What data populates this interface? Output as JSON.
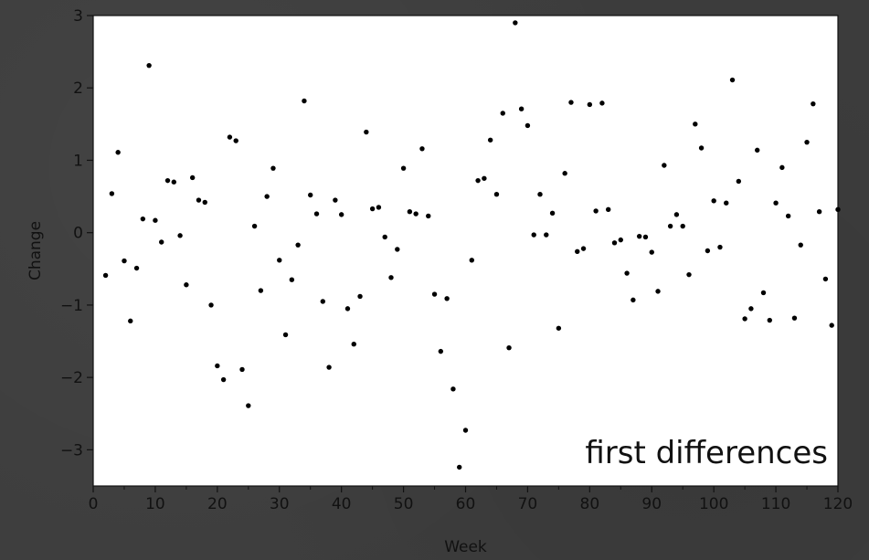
{
  "chart_data": {
    "type": "scatter",
    "xlabel": "Week",
    "ylabel": "Change",
    "xlim": [
      0,
      120
    ],
    "ylim": [
      -3.5,
      3
    ],
    "x_ticks": [
      0,
      10,
      20,
      30,
      40,
      50,
      60,
      70,
      80,
      90,
      100,
      110,
      120
    ],
    "x_tick_labels": [
      "0",
      "10",
      "20",
      "30",
      "40",
      "50",
      "60",
      "70",
      "80",
      "90",
      "100",
      "110",
      "120"
    ],
    "y_ticks": [
      -3,
      -2,
      -1,
      0,
      1,
      2,
      3
    ],
    "y_tick_labels": [
      "−3",
      "−2",
      "−1",
      "0",
      "1",
      "2",
      "3"
    ],
    "grid": false,
    "point_color": "#000000",
    "annotation": "first differences",
    "points": [
      [
        2,
        -0.59
      ],
      [
        3,
        0.54
      ],
      [
        4,
        1.11
      ],
      [
        5,
        -0.39
      ],
      [
        6,
        -1.22
      ],
      [
        7,
        -0.49
      ],
      [
        8,
        0.19
      ],
      [
        9,
        2.31
      ],
      [
        10,
        0.17
      ],
      [
        11,
        -0.13
      ],
      [
        12,
        0.72
      ],
      [
        13,
        0.7
      ],
      [
        14,
        -0.04
      ],
      [
        15,
        -0.72
      ],
      [
        16,
        0.76
      ],
      [
        17,
        0.45
      ],
      [
        18,
        0.42
      ],
      [
        19,
        -1.0
      ],
      [
        20,
        -1.84
      ],
      [
        21,
        -2.03
      ],
      [
        22,
        1.32
      ],
      [
        23,
        1.27
      ],
      [
        24,
        -1.89
      ],
      [
        25,
        -2.39
      ],
      [
        26,
        0.09
      ],
      [
        27,
        -0.8
      ],
      [
        28,
        0.5
      ],
      [
        29,
        0.89
      ],
      [
        30,
        -0.38
      ],
      [
        31,
        -1.41
      ],
      [
        32,
        -0.65
      ],
      [
        33,
        -0.17
      ],
      [
        34,
        1.82
      ],
      [
        35,
        0.52
      ],
      [
        36,
        0.26
      ],
      [
        37,
        -0.95
      ],
      [
        38,
        -1.86
      ],
      [
        39,
        0.45
      ],
      [
        40,
        0.25
      ],
      [
        41,
        -1.05
      ],
      [
        42,
        -1.54
      ],
      [
        43,
        -0.88
      ],
      [
        44,
        1.39
      ],
      [
        45,
        0.33
      ],
      [
        46,
        0.35
      ],
      [
        47,
        -0.06
      ],
      [
        48,
        -0.62
      ],
      [
        49,
        -0.23
      ],
      [
        50,
        0.89
      ],
      [
        51,
        0.29
      ],
      [
        52,
        0.26
      ],
      [
        53,
        1.16
      ],
      [
        54,
        0.23
      ],
      [
        55,
        -0.85
      ],
      [
        56,
        -1.64
      ],
      [
        57,
        -0.91
      ],
      [
        58,
        -2.16
      ],
      [
        59,
        -3.24
      ],
      [
        60,
        -2.73
      ],
      [
        61,
        -0.38
      ],
      [
        62,
        0.72
      ],
      [
        63,
        0.75
      ],
      [
        64,
        1.28
      ],
      [
        65,
        0.53
      ],
      [
        66,
        1.65
      ],
      [
        67,
        -1.59
      ],
      [
        68,
        2.9
      ],
      [
        69,
        1.71
      ],
      [
        70,
        1.48
      ],
      [
        71,
        -0.03
      ],
      [
        72,
        0.53
      ],
      [
        73,
        -0.03
      ],
      [
        74,
        0.27
      ],
      [
        75,
        -1.32
      ],
      [
        76,
        0.82
      ],
      [
        77,
        1.8
      ],
      [
        78,
        -0.26
      ],
      [
        79,
        -0.22
      ],
      [
        80,
        1.77
      ],
      [
        81,
        0.3
      ],
      [
        82,
        1.79
      ],
      [
        83,
        0.32
      ],
      [
        84,
        -0.14
      ],
      [
        85,
        -0.1
      ],
      [
        86,
        -0.56
      ],
      [
        87,
        -0.93
      ],
      [
        88,
        -0.05
      ],
      [
        89,
        -0.06
      ],
      [
        90,
        -0.27
      ],
      [
        91,
        -0.81
      ],
      [
        92,
        0.93
      ],
      [
        93,
        0.09
      ],
      [
        94,
        0.25
      ],
      [
        95,
        0.09
      ],
      [
        96,
        -0.58
      ],
      [
        97,
        1.5
      ],
      [
        98,
        1.17
      ],
      [
        99,
        -0.25
      ],
      [
        100,
        0.44
      ],
      [
        101,
        -0.2
      ],
      [
        102,
        0.41
      ],
      [
        103,
        2.11
      ],
      [
        104,
        0.71
      ],
      [
        105,
        -1.19
      ],
      [
        106,
        -1.05
      ],
      [
        107,
        1.14
      ],
      [
        108,
        -0.83
      ],
      [
        109,
        -1.21
      ],
      [
        110,
        0.41
      ],
      [
        111,
        0.9
      ],
      [
        112,
        0.23
      ],
      [
        113,
        -1.18
      ],
      [
        114,
        -0.17
      ],
      [
        115,
        1.25
      ],
      [
        116,
        1.78
      ],
      [
        117,
        0.29
      ],
      [
        118,
        -0.64
      ],
      [
        119,
        -1.28
      ],
      [
        120,
        0.32
      ]
    ]
  }
}
